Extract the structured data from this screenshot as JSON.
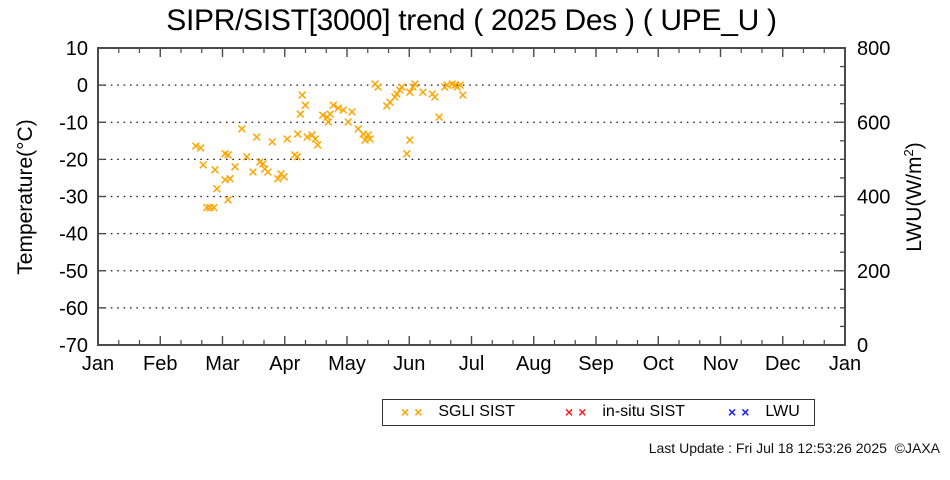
{
  "title": "SIPR/SIST[3000] trend ( 2025 Des ) ( UPE_U )",
  "footer": "Last Update : Fri Jul 18 12:53:26 2025  ©JAXA",
  "chart_data": {
    "type": "scatter",
    "title": "SIPR/SIST[3000] trend ( 2025 Des ) ( UPE_U )",
    "grid": "horizontal dotted lines at every 10 °C",
    "x_axis": {
      "labels": [
        "Jan",
        "Feb",
        "Mar",
        "Apr",
        "May",
        "Jun",
        "Jul",
        "Aug",
        "Sep",
        "Oct",
        "Nov",
        "Dec",
        "Jan"
      ],
      "minor_ticks_per_month": 2
    },
    "y_left": {
      "label": "Temperature(°C)",
      "min": -70,
      "max": 10,
      "tick_step": 10,
      "ticks": [
        10,
        0,
        -10,
        -20,
        -30,
        -40,
        -50,
        -60,
        -70
      ]
    },
    "y_right": {
      "label": "LWU(W/m²)",
      "label_pre": "LWU(W/m",
      "label_sup": "2",
      "label_post": ")",
      "min": 0,
      "max": 800,
      "tick_step": 200,
      "minor_step": 50,
      "ticks": [
        800,
        600,
        400,
        200,
        0
      ]
    },
    "legend": {
      "items": [
        {
          "label": "SGLI SIST",
          "color": "#ffa500",
          "marker": "×"
        },
        {
          "label": "in-situ SIST",
          "color": "#ff2020",
          "marker": "×"
        },
        {
          "label": "LWU",
          "color": "#2020ff",
          "marker": "×"
        }
      ]
    },
    "series": [
      {
        "name": "SGLI SIST",
        "color": "#ffa500",
        "marker": "x",
        "axis": "left",
        "points_format": [
          "month_from_jan1",
          "temperature_c"
        ],
        "points": [
          [
            1.57,
            -16.4
          ],
          [
            1.65,
            -16.9
          ],
          [
            1.69,
            -21.5
          ],
          [
            1.75,
            -33.0
          ],
          [
            1.8,
            -33.0
          ],
          [
            1.86,
            -33.0
          ],
          [
            1.88,
            -22.8
          ],
          [
            1.91,
            -27.9
          ],
          [
            2.04,
            -18.5
          ],
          [
            2.09,
            -18.8
          ],
          [
            2.04,
            -25.5
          ],
          [
            2.12,
            -25.2
          ],
          [
            2.09,
            -30.9
          ],
          [
            2.2,
            -22.0
          ],
          [
            2.31,
            -11.8
          ],
          [
            2.39,
            -19.3
          ],
          [
            2.49,
            -23.4
          ],
          [
            2.55,
            -14.0
          ],
          [
            2.6,
            -20.7
          ],
          [
            2.65,
            -21.2
          ],
          [
            2.68,
            -22.6
          ],
          [
            2.73,
            -23.4
          ],
          [
            2.8,
            -15.3
          ],
          [
            2.89,
            -25.2
          ],
          [
            2.94,
            -23.9
          ],
          [
            2.99,
            -24.7
          ],
          [
            3.04,
            -14.5
          ],
          [
            3.16,
            -18.8
          ],
          [
            3.2,
            -19.3
          ],
          [
            3.21,
            -13.2
          ],
          [
            3.25,
            -7.8
          ],
          [
            3.28,
            -2.7
          ],
          [
            3.33,
            -5.4
          ],
          [
            3.36,
            -14.0
          ],
          [
            3.44,
            -13.4
          ],
          [
            3.49,
            -14.5
          ],
          [
            3.53,
            -16.1
          ],
          [
            3.61,
            -8.1
          ],
          [
            3.68,
            -8.6
          ],
          [
            3.7,
            -9.9
          ],
          [
            3.73,
            -7.8
          ],
          [
            3.78,
            -5.4
          ],
          [
            3.86,
            -6.2
          ],
          [
            3.94,
            -6.7
          ],
          [
            4.02,
            -9.9
          ],
          [
            4.08,
            -7.2
          ],
          [
            4.18,
            -11.8
          ],
          [
            4.26,
            -13.2
          ],
          [
            4.29,
            -14.8
          ],
          [
            4.34,
            -13.4
          ],
          [
            4.37,
            -14.5
          ],
          [
            4.45,
            0.3
          ],
          [
            4.5,
            -0.5
          ],
          [
            4.64,
            -5.6
          ],
          [
            4.69,
            -4.6
          ],
          [
            4.77,
            -3.2
          ],
          [
            4.8,
            -2.4
          ],
          [
            4.85,
            -1.3
          ],
          [
            4.88,
            -0.5
          ],
          [
            4.96,
            -18.5
          ],
          [
            5.01,
            -14.8
          ],
          [
            5.01,
            -1.9
          ],
          [
            5.06,
            -0.5
          ],
          [
            5.09,
            0.3
          ],
          [
            5.22,
            -1.9
          ],
          [
            5.37,
            -2.4
          ],
          [
            5.41,
            -3.2
          ],
          [
            5.48,
            -8.6
          ],
          [
            5.57,
            -0.5
          ],
          [
            5.61,
            0.0
          ],
          [
            5.69,
            0.3
          ],
          [
            5.74,
            0.0
          ],
          [
            5.77,
            -0.5
          ],
          [
            5.82,
            0.0
          ],
          [
            5.86,
            -2.7
          ]
        ]
      },
      {
        "name": "in-situ SIST",
        "color": "#ff2020",
        "marker": "x",
        "axis": "left",
        "points": []
      },
      {
        "name": "LWU",
        "color": "#2020ff",
        "marker": "x",
        "axis": "right",
        "points": []
      }
    ]
  }
}
